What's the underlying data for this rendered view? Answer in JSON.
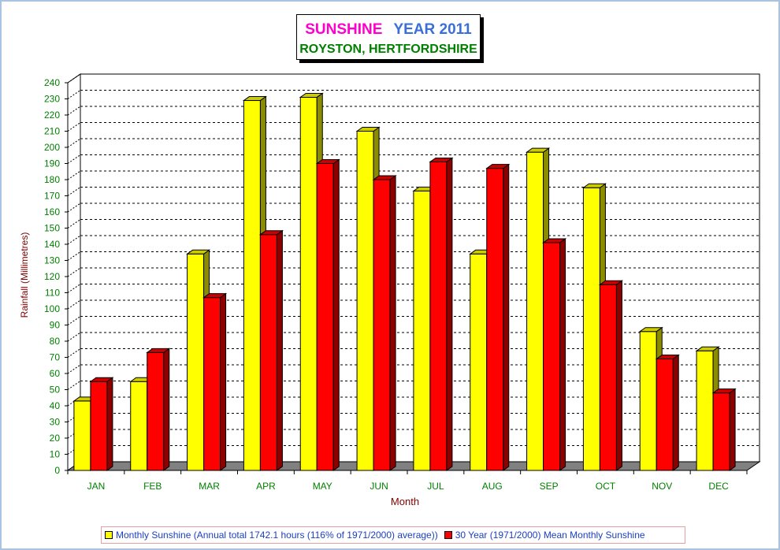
{
  "title": {
    "line1_a": "SUNSHINE",
    "line1_b": "YEAR 2011",
    "line2": "ROYSTON, HERTFORDSHIRE"
  },
  "colors": {
    "primary": "#ffff00",
    "secondary": "#ff0000",
    "floor": "#808080",
    "axis_text": "#008000",
    "axis_title": "#800000"
  },
  "chart_data": {
    "type": "bar",
    "categories": [
      "JAN",
      "FEB",
      "MAR",
      "APR",
      "MAY",
      "JUN",
      "JUL",
      "AUG",
      "SEP",
      "OCT",
      "NOV",
      "DEC"
    ],
    "series": [
      {
        "name": "Monthly Sunshine (Annual total 1742.1 hours (116% of 1971/2000) average))",
        "values": [
          43,
          55,
          134,
          229,
          231,
          210,
          173,
          134,
          197,
          175,
          86,
          74
        ]
      },
      {
        "name": "30 Year (1971/2000) Mean Monthly Sunshine",
        "values": [
          55,
          73,
          107,
          146,
          190,
          180,
          191,
          187,
          141,
          115,
          69,
          48
        ]
      }
    ],
    "xlabel": "Month",
    "ylabel": "Rainfall  (Millimetres)",
    "ylim": [
      0,
      240
    ],
    "yticks": [
      0,
      10,
      20,
      30,
      40,
      50,
      60,
      70,
      80,
      90,
      100,
      110,
      120,
      130,
      140,
      150,
      160,
      170,
      180,
      190,
      200,
      210,
      220,
      230,
      240
    ],
    "grid": true,
    "legend_position": "bottom"
  }
}
